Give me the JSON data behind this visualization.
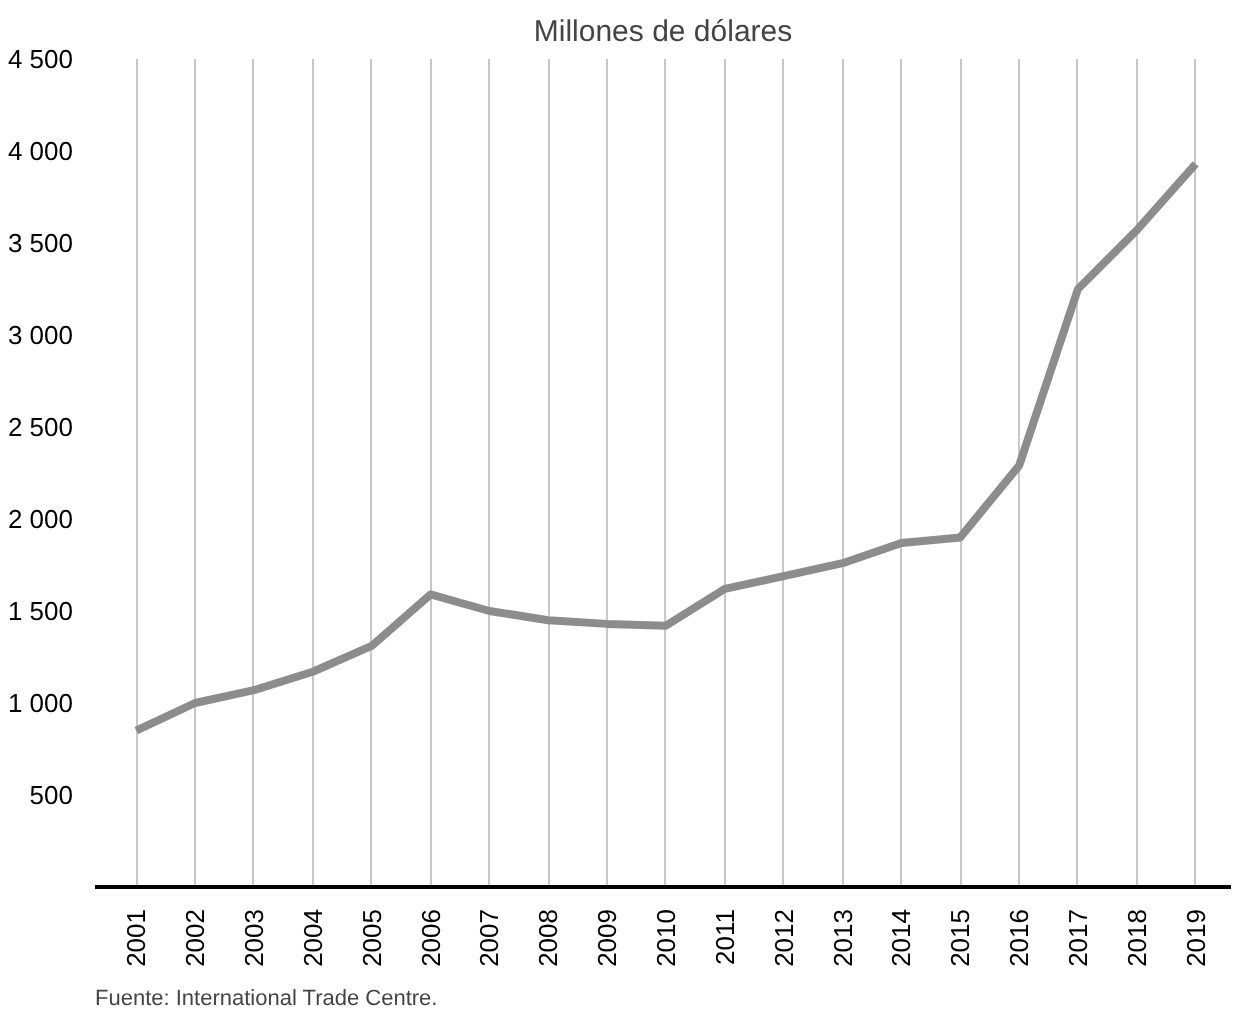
{
  "chart_data": {
    "type": "line",
    "title": "Millones de dólares",
    "categories": [
      "2001",
      "2002",
      "2003",
      "2004",
      "2005",
      "2006",
      "2007",
      "2008",
      "2009",
      "2010",
      "2011",
      "2012",
      "2013",
      "2014",
      "2015",
      "2016",
      "2017",
      "2018",
      "2019"
    ],
    "series": [
      {
        "color": "#8c8c8c",
        "values": [
          850,
          1000,
          1070,
          1170,
          1310,
          1590,
          1500,
          1450,
          1430,
          1420,
          1620,
          1690,
          1760,
          1870,
          1900,
          2290,
          3250,
          3570,
          3930
        ]
      }
    ],
    "ylim": [
      0,
      4500
    ],
    "yticks": [
      {
        "value": 500,
        "label": "500"
      },
      {
        "value": 1000,
        "label": "1 000"
      },
      {
        "value": 1500,
        "label": "1 500"
      },
      {
        "value": 2000,
        "label": "2 000"
      },
      {
        "value": 2500,
        "label": "2 500"
      },
      {
        "value": 3000,
        "label": "3 000"
      },
      {
        "value": 3500,
        "label": "3 500"
      },
      {
        "value": 4000,
        "label": "4 000"
      },
      {
        "value": 4500,
        "label": "4 500"
      }
    ],
    "grid": "x",
    "marker": "none",
    "line_style": "solid",
    "annotations": [
      "Fuente: International Trade Centre."
    ]
  }
}
